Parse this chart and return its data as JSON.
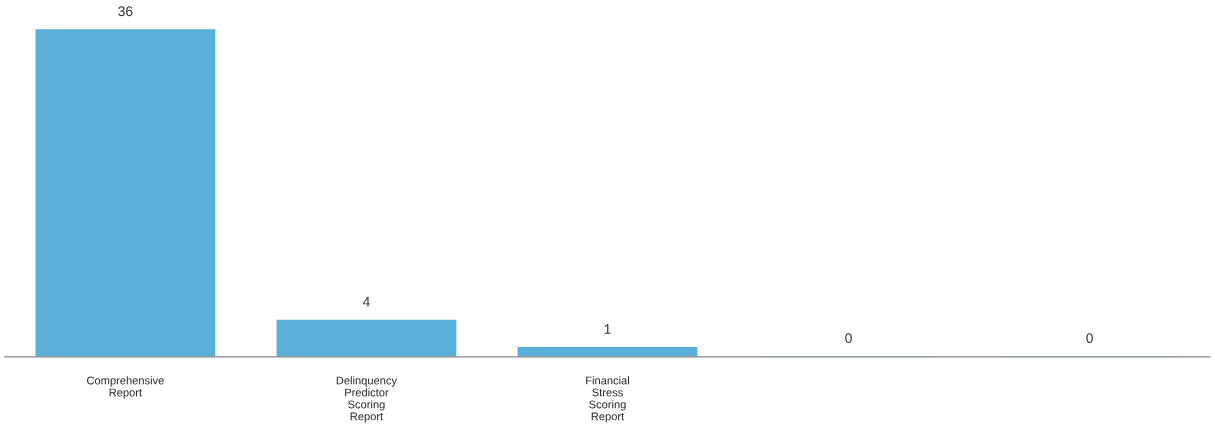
{
  "chart_data": {
    "type": "bar",
    "categories": [
      "Comprehensive\nReport",
      "Delinquency\nPredictor\nScoring\nReport",
      "Financial\nStress\nScoring\nReport",
      null,
      null
    ],
    "values": [
      36,
      4,
      1,
      0,
      0
    ],
    "color": "#5ab0d8",
    "data_labels": true,
    "grid": false,
    "legend": false
  }
}
